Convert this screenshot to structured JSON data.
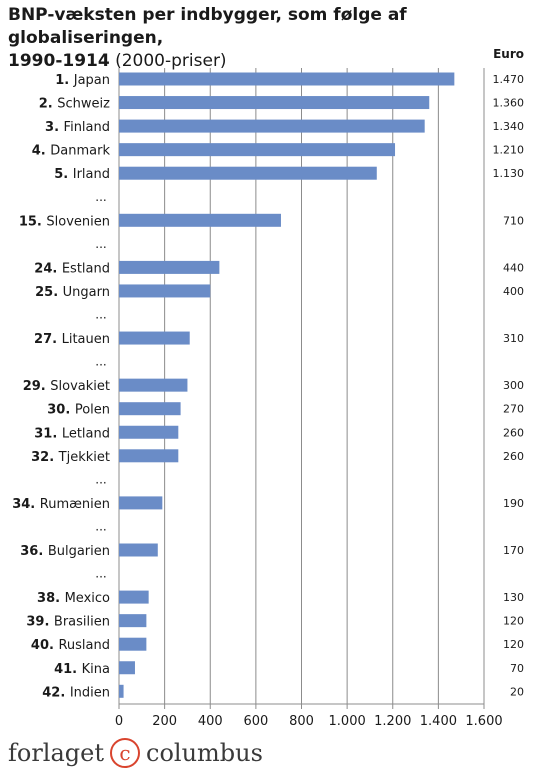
{
  "chart_data": {
    "type": "bar",
    "orientation": "horizontal",
    "title": "BNP-væksten per indbygger, som følge af globaliseringen,",
    "title_line2": "1990-1914",
    "subtitle": "(2000-priser)",
    "value_column_header": "Euro",
    "xlim": [
      0,
      1600
    ],
    "x_ticks": [
      "0",
      "200",
      "400",
      "600",
      "800",
      "1.000",
      "1.200",
      "1.400",
      "1.600"
    ],
    "ellipsis_label": "...",
    "bar_color": "#6a8cc7",
    "rows": [
      {
        "rank": "1.",
        "name": "Japan",
        "value": 1470,
        "label": "1.470"
      },
      {
        "rank": "2.",
        "name": "Schweiz",
        "value": 1360,
        "label": "1.360"
      },
      {
        "rank": "3.",
        "name": "Finland",
        "value": 1340,
        "label": "1.340"
      },
      {
        "rank": "4.",
        "name": "Danmark",
        "value": 1210,
        "label": "1.210"
      },
      {
        "rank": "5.",
        "name": "Irland",
        "value": 1130,
        "label": "1.130"
      },
      {
        "ellipsis": true
      },
      {
        "rank": "15.",
        "name": "Slovenien",
        "value": 710,
        "label": "710"
      },
      {
        "ellipsis": true
      },
      {
        "rank": "24.",
        "name": "Estland",
        "value": 440,
        "label": "440"
      },
      {
        "rank": "25.",
        "name": "Ungarn",
        "value": 400,
        "label": "400"
      },
      {
        "ellipsis": true
      },
      {
        "rank": "27.",
        "name": "Litauen",
        "value": 310,
        "label": "310"
      },
      {
        "ellipsis": true
      },
      {
        "rank": "29.",
        "name": "Slovakiet",
        "value": 300,
        "label": "300"
      },
      {
        "rank": "30.",
        "name": "Polen",
        "value": 270,
        "label": "270"
      },
      {
        "rank": "31.",
        "name": "Letland",
        "value": 260,
        "label": "260"
      },
      {
        "rank": "32.",
        "name": "Tjekkiet",
        "value": 260,
        "label": "260"
      },
      {
        "ellipsis": true
      },
      {
        "rank": "34.",
        "name": "Rumænien",
        "value": 190,
        "label": "190"
      },
      {
        "ellipsis": true
      },
      {
        "rank": "36.",
        "name": "Bulgarien",
        "value": 170,
        "label": "170"
      },
      {
        "ellipsis": true
      },
      {
        "rank": "38.",
        "name": "Mexico",
        "value": 130,
        "label": "130"
      },
      {
        "rank": "39.",
        "name": "Brasilien",
        "value": 120,
        "label": "120"
      },
      {
        "rank": "40.",
        "name": "Rusland",
        "value": 120,
        "label": "120"
      },
      {
        "rank": "41.",
        "name": "Kina",
        "value": 70,
        "label": "70"
      },
      {
        "rank": "42.",
        "name": "Indien",
        "value": 20,
        "label": "20"
      }
    ]
  },
  "footer": {
    "brand_left": "forlaget",
    "brand_mark": "c",
    "brand_right": "columbus"
  }
}
